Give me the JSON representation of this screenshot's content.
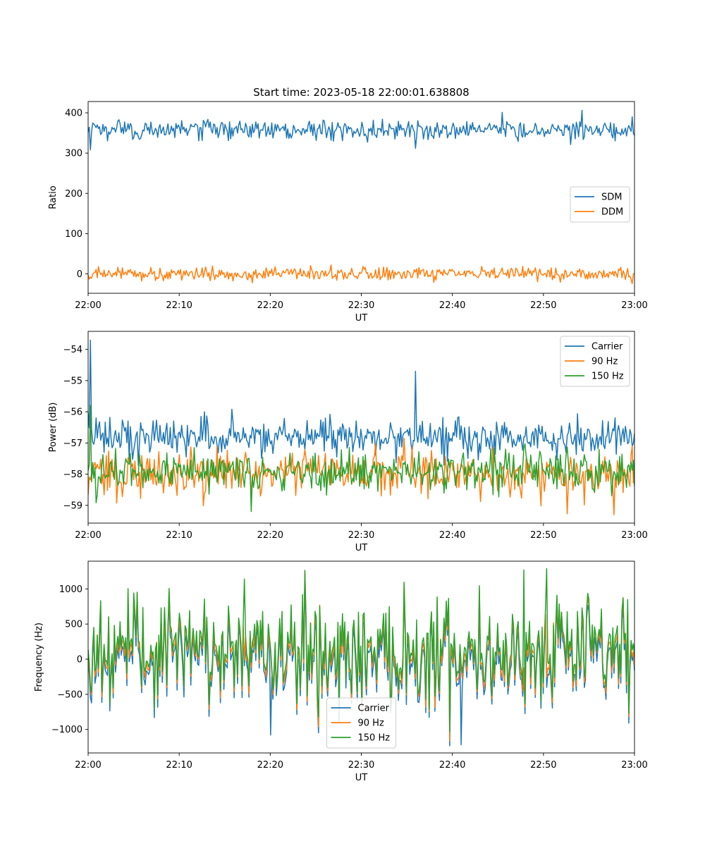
{
  "chart_data": [
    {
      "type": "line",
      "title": "Start time: 2023-05-18 22:00:01.638808",
      "xlabel": "UT",
      "ylabel": "Ratio",
      "x_range": [
        "22:00",
        "23:00"
      ],
      "ylim": [
        -48,
        428
      ],
      "xticks": [
        "22:00",
        "22:10",
        "22:20",
        "22:30",
        "22:40",
        "22:50",
        "23:00"
      ],
      "yticks": [
        0,
        100,
        200,
        300,
        400
      ],
      "ytick_labels": [
        "0",
        "100",
        "200",
        "300",
        "400"
      ],
      "legend_position": "center-right",
      "series": [
        {
          "name": "SDM",
          "color": "#1f77b4",
          "mean": 358,
          "noise": 12,
          "spikes": [
            {
              "t": 0.3,
              "v": 308
            },
            {
              "t": 54.3,
              "v": 406
            },
            {
              "t": 45.5,
              "v": 401
            },
            {
              "t": 35.9,
              "v": 312
            }
          ]
        },
        {
          "name": "DDM",
          "color": "#ff7f0e",
          "mean": 0,
          "noise": 8,
          "spikes": [
            {
              "t": 59.8,
              "v": -24
            },
            {
              "t": 18.0,
              "v": -22
            }
          ]
        }
      ]
    },
    {
      "type": "line",
      "title": "",
      "xlabel": "UT",
      "ylabel": "Power (dB)",
      "x_range": [
        "22:00",
        "23:00"
      ],
      "ylim": [
        -59.57,
        -53.42
      ],
      "xticks": [
        "22:00",
        "22:10",
        "22:20",
        "22:30",
        "22:40",
        "22:50",
        "23:00"
      ],
      "yticks": [
        -59,
        -58,
        -57,
        -56,
        -55,
        -54
      ],
      "ytick_labels": [
        "−59",
        "−58",
        "−57",
        "−56",
        "−55",
        "−54"
      ],
      "legend_position": "upper-right",
      "series": [
        {
          "name": "Carrier",
          "color": "#1f77b4",
          "mean": -56.8,
          "noise": 0.3,
          "spikes": [
            {
              "t": 0.3,
              "v": -53.7
            },
            {
              "t": 36.0,
              "v": -54.7
            },
            {
              "t": 12.8,
              "v": -56.0
            }
          ]
        },
        {
          "name": "90 Hz",
          "color": "#ff7f0e",
          "mean": -57.95,
          "noise": 0.35,
          "spikes": [
            {
              "t": 59.7,
              "v": -57.1
            },
            {
              "t": 57.8,
              "v": -59.3
            }
          ]
        },
        {
          "name": "150 Hz",
          "color": "#2ca02c",
          "mean": -57.9,
          "noise": 0.33,
          "spikes": [
            {
              "t": 0.3,
              "v": -55.8
            },
            {
              "t": 17.9,
              "v": -59.2
            }
          ]
        }
      ]
    },
    {
      "type": "line",
      "title": "",
      "xlabel": "UT",
      "ylabel": "Frequency (Hz)",
      "x_range": [
        "22:00",
        "23:00"
      ],
      "ylim": [
        -1335,
        1395
      ],
      "xticks": [
        "22:00",
        "22:10",
        "22:20",
        "22:30",
        "22:40",
        "22:50",
        "23:00"
      ],
      "yticks": [
        -1000,
        -500,
        0,
        500,
        1000
      ],
      "ytick_labels": [
        "−1000",
        "−500",
        "0",
        "500",
        "1000"
      ],
      "legend_position": "lower-center",
      "series": [
        {
          "name": "Carrier",
          "color": "#1f77b4",
          "mean": 0,
          "noise": 380,
          "spikes": [
            {
              "t": 40.9,
              "v": -1220
            },
            {
              "t": 20.0,
              "v": -1080
            }
          ]
        },
        {
          "name": "90 Hz",
          "color": "#ff7f0e",
          "mean": 90,
          "noise": 380,
          "spikes": []
        },
        {
          "name": "150 Hz",
          "color": "#2ca02c",
          "mean": 150,
          "noise": 380,
          "spikes": [
            {
              "t": 50.4,
              "v": 1290
            },
            {
              "t": 47.8,
              "v": 1270
            },
            {
              "t": 17.1,
              "v": 1140
            }
          ]
        }
      ]
    }
  ]
}
